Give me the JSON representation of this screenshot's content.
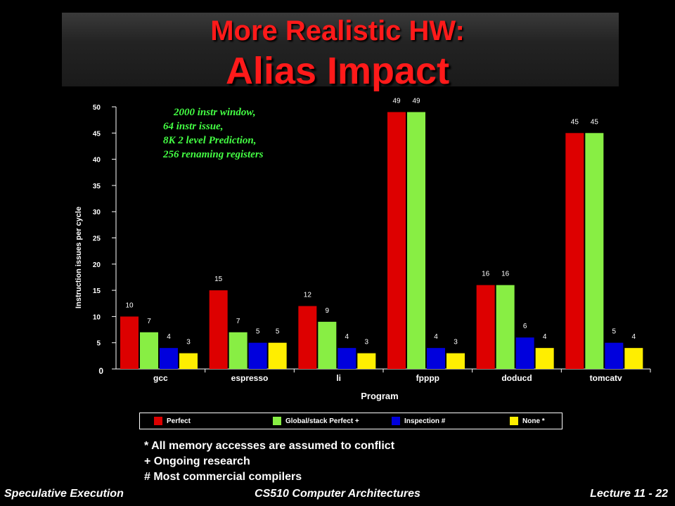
{
  "slide": {
    "title_line1": "More Realistic HW:",
    "title_line2": "Alias Impact",
    "annotation": [
      "2000 instr window,",
      "64 instr issue,",
      "8K 2 level Prediction,",
      "256 renaming registers"
    ],
    "notes": [
      "* All memory accesses are assumed to conflict",
      "+ Ongoing research",
      "# Most commercial compilers"
    ],
    "footer": {
      "left": "Speculative Execution",
      "center": "CS510 Computer Architectures",
      "right": "Lecture 11 - 22"
    },
    "colors": {
      "title": "#ff1a1a",
      "annotation": "#44ff44",
      "background": "#000000"
    }
  },
  "chart_data": {
    "type": "bar",
    "categories": [
      "gcc",
      "espresso",
      "li",
      "fpppp",
      "doducd",
      "tomcatv"
    ],
    "series": [
      {
        "name": "Perfect",
        "color": "#dd0000",
        "values": [
          10,
          15,
          12,
          49,
          16,
          45
        ]
      },
      {
        "name": "Global/stack Perfect +",
        "color": "#88ee44",
        "values": [
          7,
          7,
          9,
          49,
          16,
          45
        ]
      },
      {
        "name": "Inspection #",
        "color": "#0000dd",
        "values": [
          4,
          5,
          4,
          4,
          6,
          5
        ]
      },
      {
        "name": "None *",
        "color": "#ffee00",
        "values": [
          3,
          5,
          3,
          3,
          4,
          4
        ]
      }
    ],
    "xlabel": "Program",
    "ylabel": "Instruction issues per cycle",
    "ylim": [
      0,
      50
    ],
    "yticks": [
      0,
      5,
      10,
      15,
      20,
      25,
      30,
      35,
      40,
      45,
      50
    ],
    "grid": false,
    "legend": "bottom"
  }
}
